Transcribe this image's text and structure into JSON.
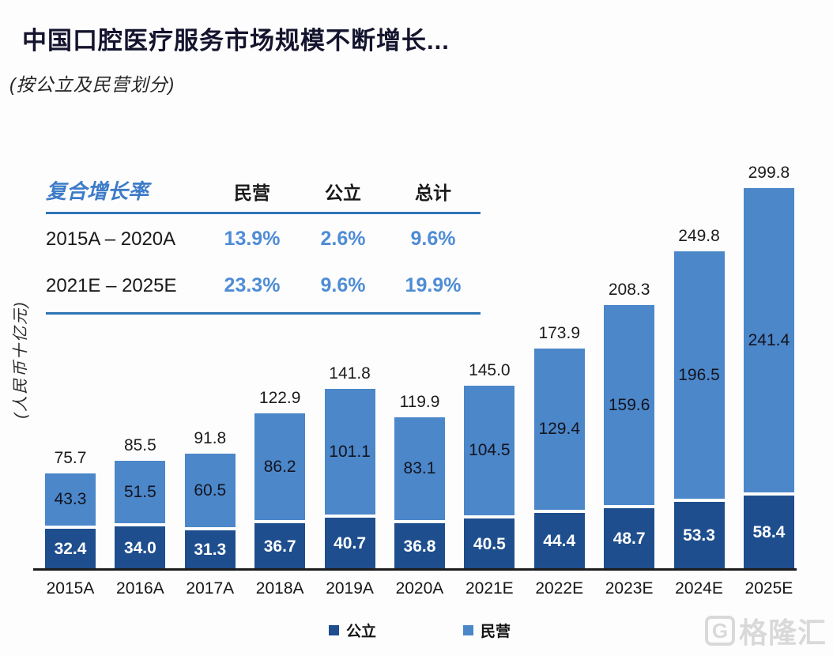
{
  "chart_data": {
    "type": "bar",
    "stacked": true,
    "title": "中国口腔医疗服务市场规模不断增长...",
    "subtitle": "(按公立及民营划分)",
    "ylabel": "(人民币十亿元)",
    "ylim": [
      0,
      300
    ],
    "grid": false,
    "legend_position": "bottom",
    "categories": [
      "2015A",
      "2016A",
      "2017A",
      "2018A",
      "2019A",
      "2020A",
      "2021E",
      "2022E",
      "2023E",
      "2024E",
      "2025E"
    ],
    "series": [
      {
        "name": "公立",
        "color": "#1e4e8d",
        "values": [
          32.4,
          34.0,
          31.3,
          36.7,
          40.7,
          36.8,
          40.5,
          44.4,
          48.7,
          53.3,
          58.4
        ]
      },
      {
        "name": "民营",
        "color": "#4b87c9",
        "values": [
          43.3,
          51.5,
          60.5,
          86.2,
          101.1,
          83.1,
          104.5,
          129.4,
          159.6,
          196.5,
          241.4
        ]
      }
    ],
    "totals": [
      75.7,
      85.5,
      91.8,
      122.9,
      141.8,
      119.9,
      145.0,
      173.9,
      208.3,
      249.8,
      299.8
    ]
  },
  "cagr_table": {
    "title": "复合增长率",
    "columns": [
      "民营",
      "公立",
      "总计"
    ],
    "rows": [
      {
        "period": "2015A – 2020A",
        "private": "13.9%",
        "public": "2.6%",
        "total": "9.6%"
      },
      {
        "period": "2021E – 2025E",
        "private": "23.3%",
        "public": "9.6%",
        "total": "19.9%"
      }
    ]
  },
  "legend": {
    "items": [
      {
        "label": "公立",
        "color": "#1e4e8d"
      },
      {
        "label": "民营",
        "color": "#4b87c9"
      }
    ]
  },
  "watermark": {
    "text": "格隆汇",
    "icon": "gelonghui-logo"
  },
  "colors": {
    "public_bar": "#1e4e8d",
    "private_bar": "#4b87c9",
    "table_rule": "#2e74b5",
    "table_accent_text": "#3d7bc8",
    "percent_text": "#4e8cd5",
    "axis_line": "#1c1c1c",
    "title_text": "#14142e",
    "watermark_gray": "#d9d9d9"
  }
}
